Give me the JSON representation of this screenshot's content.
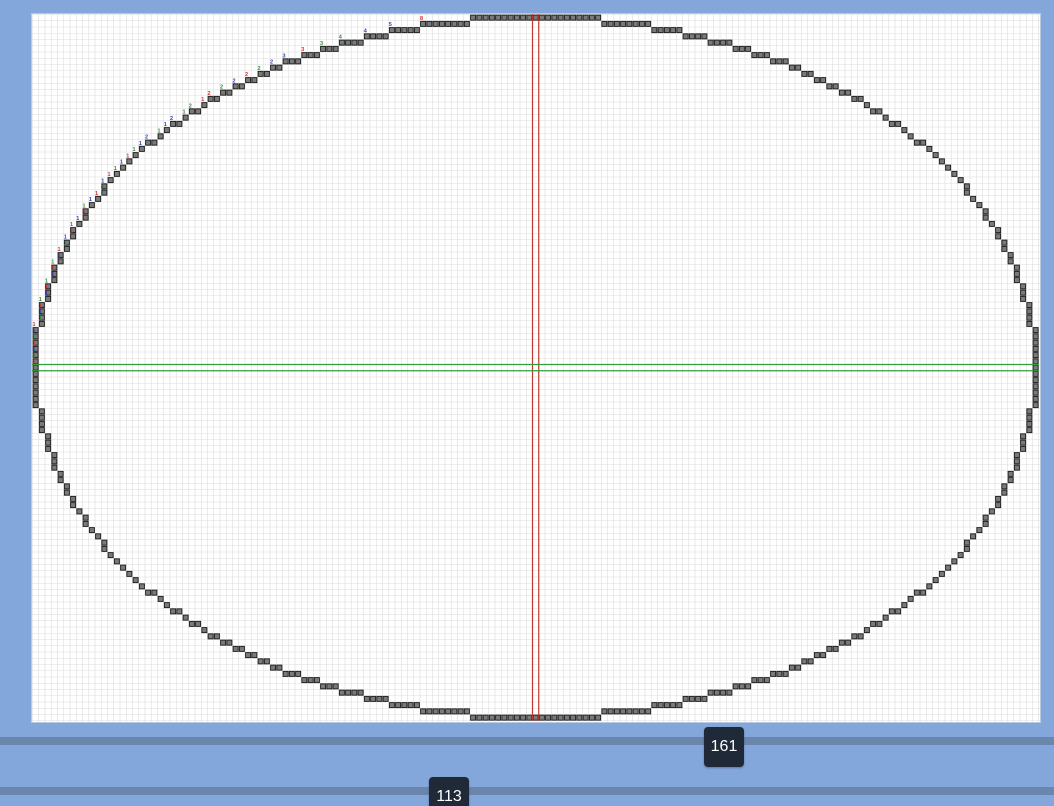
{
  "canvas": {
    "ellipse_width_blocks": 161,
    "ellipse_height_blocks": 113,
    "colors": {
      "background": "#84a7db",
      "grid_line": "#dcdcdc",
      "block_fill": "#7a7a7a",
      "block_border": "#1a1a1a",
      "vertical_axis": "#c0392b",
      "horizontal_axis": "#2e9e3e",
      "label_red": "#d32f2f",
      "label_blue": "#2c3eb8",
      "label_green": "#2e8b3e"
    }
  },
  "sliders": {
    "width": {
      "value": "161"
    },
    "height": {
      "value": "113"
    }
  }
}
